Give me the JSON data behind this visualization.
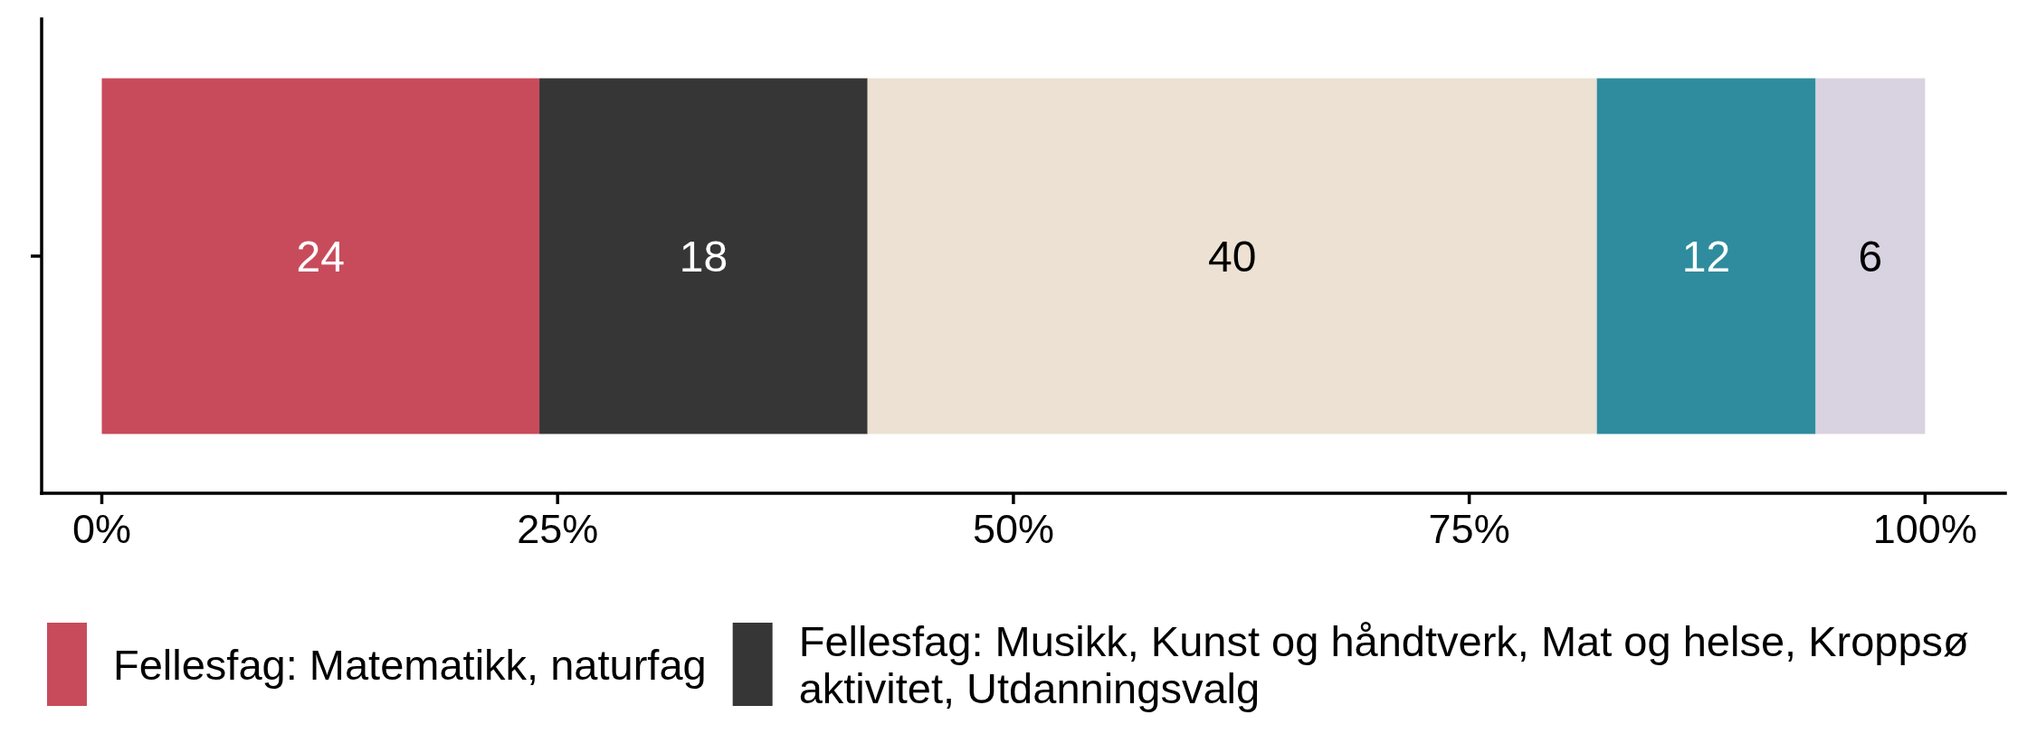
{
  "chart_data": {
    "type": "bar",
    "orientation": "horizontal",
    "stacked": true,
    "categories": [
      null
    ],
    "series": [
      {
        "name": "Fellesfag: Matematikk, naturfag",
        "color": "#c84b5b",
        "values": [
          24
        ]
      },
      {
        "name": "Fellesfag: Musikk, Kunst og håndtverk, Mat og helse, Kroppsø aktivitet, Utdanningsvalg",
        "color": "#363636",
        "values": [
          18
        ]
      },
      {
        "color": "#ece1d2",
        "values": [
          40
        ]
      },
      {
        "color": "#2e8c9e",
        "values": [
          12
        ]
      },
      {
        "color": "#d9d2e0",
        "values": [
          6
        ]
      }
    ],
    "xlim": [
      -3.3,
      104.4
    ],
    "xticks": [
      {
        "value": 0,
        "label": "0%"
      },
      {
        "value": 25,
        "label": "25%"
      },
      {
        "value": 50,
        "label": "50%"
      },
      {
        "value": 75,
        "label": "75%"
      },
      {
        "value": 100,
        "label": "100%"
      }
    ],
    "data_labels": true,
    "legend": "bottom"
  }
}
